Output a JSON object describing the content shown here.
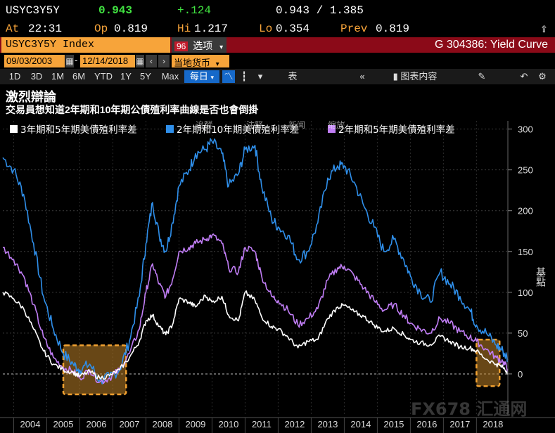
{
  "header": {
    "ticker": "USYC3Y5Y",
    "last": "0.943",
    "change": "+.124",
    "range": "0.943 / 1.385",
    "at_label": "At",
    "at_time": "22:31",
    "op_label": "Op",
    "op_value": "0.819",
    "hi_label": "Hi",
    "hi_value": "1.217",
    "lo_label": "Lo",
    "lo_value": "0.354",
    "prev_label": "Prev",
    "prev_value": "0.819"
  },
  "function_bar": {
    "security": "USYC3Y5Y Index",
    "options_num": "96",
    "options_label": "选项",
    "title": "G 304386: Yield Curve"
  },
  "date_row": {
    "start": "09/03/2003",
    "dash": "-",
    "end": "12/14/2018",
    "currency": "当地货币"
  },
  "toolbar": {
    "periods": [
      "1D",
      "3D",
      "1M",
      "6M",
      "YTD",
      "1Y",
      "5Y",
      "Max"
    ],
    "frequency": "每日",
    "table": "表",
    "chart_content": "图表内容"
  },
  "page": {
    "title": "激烈辯論",
    "subtitle": "交易員想知道2年期和10年期公債殖利率曲線是否也會倒掛"
  },
  "legend_overlay": {
    "track": "追蹤",
    "note": "注释",
    "news": "新闻",
    "zoom": "缩放"
  },
  "watermark": "FX678 汇通网",
  "colors": {
    "series_3y5y": "#ffffff",
    "series_2y10y": "#2f8fea",
    "series_2y5y": "#c17ef6",
    "highlight": "#f0a030",
    "background": "#000000"
  },
  "chart_data": {
    "type": "line",
    "ylabel": "基點",
    "ylim": [
      -50,
      310
    ],
    "y_ticks": [
      0,
      50,
      100,
      150,
      200,
      250,
      300
    ],
    "x_labels": [
      "2004",
      "2005",
      "2006",
      "2007",
      "2008",
      "2009",
      "2010",
      "2011",
      "2012",
      "2013",
      "2014",
      "2015",
      "2016",
      "2017",
      "2018"
    ],
    "x_range": [
      2003.67,
      2018.95
    ],
    "highlights": [
      [
        2005.5,
        2007.4,
        -25,
        35
      ],
      [
        2018.0,
        2018.7,
        -15,
        42
      ]
    ],
    "series": [
      {
        "name": "3年期和5年期美債殖利率差",
        "points": [
          [
            2003.67,
            100
          ],
          [
            2004.0,
            92
          ],
          [
            2004.3,
            80
          ],
          [
            2004.6,
            55
          ],
          [
            2004.9,
            28
          ],
          [
            2005.2,
            12
          ],
          [
            2005.5,
            5
          ],
          [
            2005.8,
            2
          ],
          [
            2006.0,
            -3
          ],
          [
            2006.3,
            3
          ],
          [
            2006.6,
            -5
          ],
          [
            2006.9,
            -2
          ],
          [
            2007.2,
            5
          ],
          [
            2007.5,
            20
          ],
          [
            2007.8,
            40
          ],
          [
            2008.0,
            65
          ],
          [
            2008.2,
            72
          ],
          [
            2008.4,
            58
          ],
          [
            2008.6,
            48
          ],
          [
            2008.8,
            60
          ],
          [
            2009.0,
            92
          ],
          [
            2009.3,
            88
          ],
          [
            2009.5,
            82
          ],
          [
            2009.8,
            96
          ],
          [
            2010.0,
            88
          ],
          [
            2010.3,
            95
          ],
          [
            2010.5,
            72
          ],
          [
            2010.8,
            65
          ],
          [
            2011.0,
            100
          ],
          [
            2011.3,
            90
          ],
          [
            2011.5,
            70
          ],
          [
            2011.8,
            58
          ],
          [
            2012.0,
            55
          ],
          [
            2012.3,
            45
          ],
          [
            2012.6,
            32
          ],
          [
            2012.9,
            40
          ],
          [
            2013.2,
            42
          ],
          [
            2013.5,
            68
          ],
          [
            2013.8,
            82
          ],
          [
            2014.0,
            84
          ],
          [
            2014.3,
            76
          ],
          [
            2014.6,
            70
          ],
          [
            2014.9,
            60
          ],
          [
            2015.2,
            52
          ],
          [
            2015.5,
            56
          ],
          [
            2015.8,
            48
          ],
          [
            2016.0,
            42
          ],
          [
            2016.3,
            38
          ],
          [
            2016.6,
            36
          ],
          [
            2016.9,
            46
          ],
          [
            2017.2,
            40
          ],
          [
            2017.5,
            33
          ],
          [
            2017.8,
            32
          ],
          [
            2018.0,
            28
          ],
          [
            2018.3,
            18
          ],
          [
            2018.6,
            12
          ],
          [
            2018.8,
            8
          ],
          [
            2018.95,
            2
          ]
        ]
      },
      {
        "name": "2年期和10年期美債殖利率差",
        "points": [
          [
            2003.67,
            265
          ],
          [
            2004.0,
            250
          ],
          [
            2004.3,
            220
          ],
          [
            2004.6,
            160
          ],
          [
            2004.9,
            95
          ],
          [
            2005.2,
            55
          ],
          [
            2005.5,
            25
          ],
          [
            2005.8,
            12
          ],
          [
            2006.0,
            5
          ],
          [
            2006.3,
            12
          ],
          [
            2006.6,
            -8
          ],
          [
            2006.9,
            -4
          ],
          [
            2007.2,
            5
          ],
          [
            2007.5,
            40
          ],
          [
            2007.8,
            95
          ],
          [
            2008.0,
            160
          ],
          [
            2008.2,
            210
          ],
          [
            2008.4,
            170
          ],
          [
            2008.6,
            150
          ],
          [
            2008.8,
            185
          ],
          [
            2009.0,
            230
          ],
          [
            2009.3,
            250
          ],
          [
            2009.5,
            270
          ],
          [
            2009.8,
            275
          ],
          [
            2010.0,
            285
          ],
          [
            2010.3,
            270
          ],
          [
            2010.5,
            230
          ],
          [
            2010.8,
            245
          ],
          [
            2011.0,
            275
          ],
          [
            2011.3,
            280
          ],
          [
            2011.5,
            230
          ],
          [
            2011.8,
            190
          ],
          [
            2012.0,
            180
          ],
          [
            2012.3,
            170
          ],
          [
            2012.6,
            140
          ],
          [
            2012.9,
            150
          ],
          [
            2013.2,
            185
          ],
          [
            2013.5,
            240
          ],
          [
            2013.8,
            255
          ],
          [
            2014.0,
            255
          ],
          [
            2014.3,
            235
          ],
          [
            2014.6,
            205
          ],
          [
            2014.9,
            180
          ],
          [
            2015.2,
            150
          ],
          [
            2015.5,
            165
          ],
          [
            2015.8,
            140
          ],
          [
            2016.0,
            120
          ],
          [
            2016.3,
            100
          ],
          [
            2016.6,
            88
          ],
          [
            2016.9,
            125
          ],
          [
            2017.2,
            110
          ],
          [
            2017.5,
            95
          ],
          [
            2017.8,
            78
          ],
          [
            2018.0,
            60
          ],
          [
            2018.3,
            50
          ],
          [
            2018.6,
            35
          ],
          [
            2018.8,
            28
          ],
          [
            2018.95,
            18
          ]
        ]
      },
      {
        "name": "2年期和5年期美債殖利率差",
        "points": [
          [
            2003.67,
            155
          ],
          [
            2004.0,
            140
          ],
          [
            2004.3,
            120
          ],
          [
            2004.6,
            85
          ],
          [
            2004.9,
            45
          ],
          [
            2005.2,
            20
          ],
          [
            2005.5,
            8
          ],
          [
            2005.8,
            3
          ],
          [
            2006.0,
            -5
          ],
          [
            2006.3,
            5
          ],
          [
            2006.6,
            -10
          ],
          [
            2006.9,
            -5
          ],
          [
            2007.2,
            5
          ],
          [
            2007.5,
            25
          ],
          [
            2007.8,
            55
          ],
          [
            2008.0,
            100
          ],
          [
            2008.2,
            135
          ],
          [
            2008.4,
            110
          ],
          [
            2008.6,
            95
          ],
          [
            2008.8,
            115
          ],
          [
            2009.0,
            150
          ],
          [
            2009.3,
            155
          ],
          [
            2009.5,
            160
          ],
          [
            2009.8,
            165
          ],
          [
            2010.0,
            170
          ],
          [
            2010.3,
            160
          ],
          [
            2010.5,
            130
          ],
          [
            2010.8,
            125
          ],
          [
            2011.0,
            155
          ],
          [
            2011.3,
            150
          ],
          [
            2011.5,
            120
          ],
          [
            2011.8,
            95
          ],
          [
            2012.0,
            90
          ],
          [
            2012.3,
            78
          ],
          [
            2012.6,
            60
          ],
          [
            2012.9,
            68
          ],
          [
            2013.2,
            80
          ],
          [
            2013.5,
            115
          ],
          [
            2013.8,
            130
          ],
          [
            2014.0,
            132
          ],
          [
            2014.3,
            120
          ],
          [
            2014.6,
            105
          ],
          [
            2014.9,
            90
          ],
          [
            2015.2,
            78
          ],
          [
            2015.5,
            85
          ],
          [
            2015.8,
            72
          ],
          [
            2016.0,
            62
          ],
          [
            2016.3,
            55
          ],
          [
            2016.6,
            50
          ],
          [
            2016.9,
            68
          ],
          [
            2017.2,
            62
          ],
          [
            2017.5,
            52
          ],
          [
            2017.8,
            45
          ],
          [
            2018.0,
            40
          ],
          [
            2018.3,
            30
          ],
          [
            2018.6,
            20
          ],
          [
            2018.8,
            15
          ],
          [
            2018.95,
            6
          ]
        ]
      }
    ]
  }
}
